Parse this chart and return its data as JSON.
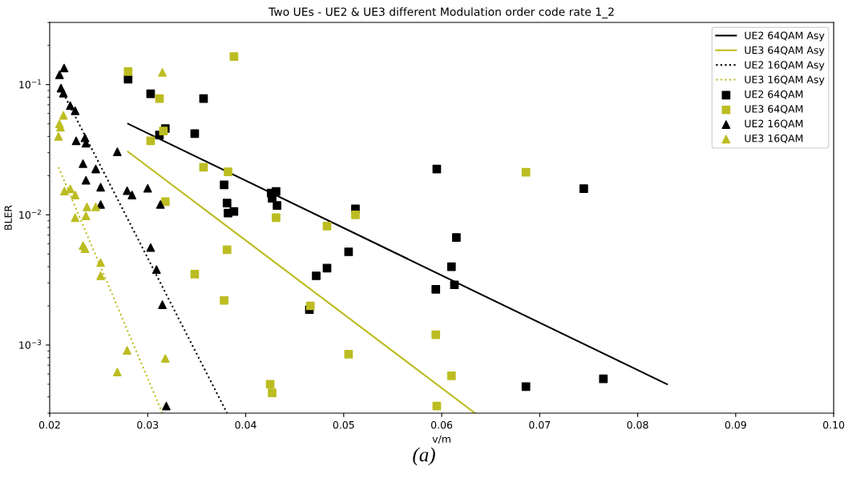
{
  "chart_data": {
    "type": "scatter",
    "title": "Two UEs - UE2 & UE3 different Modulation order code rate 1_2",
    "xlabel": "v/m",
    "ylabel": "BLER",
    "log": "y",
    "xlim": [
      0.02,
      0.1
    ],
    "ylim": [
      0.0003,
      0.3
    ],
    "xticks": [
      0.02,
      0.03,
      0.04,
      0.05,
      0.06,
      0.07,
      0.08,
      0.09,
      {
        "value": 0.1,
        "label": "0.10"
      }
    ],
    "yticks": [
      {
        "value": 0.001,
        "label": "10$^{−3}$"
      },
      {
        "value": 0.01,
        "label": "10$^{−2}$"
      },
      {
        "value": 0.1,
        "label": "10$^{−1}$"
      }
    ],
    "grid": false,
    "legend": "top right",
    "annotations": [
      "(a)"
    ],
    "series": [
      {
        "name": "UE2 64QAM Asy",
        "type": "line",
        "line_style": "solid",
        "marker": "none",
        "color": "#000000",
        "x": [
          0.028,
          0.083
        ],
        "values": [
          0.05,
          0.0005
        ]
      },
      {
        "name": "UE3 64QAM Asy",
        "type": "line",
        "line_style": "solid",
        "marker": "none",
        "color": "#bcbd22",
        "x": [
          0.028,
          0.0634
        ],
        "values": [
          0.0305,
          0.0003
        ]
      },
      {
        "name": "UE2 16QAM Asy",
        "type": "line",
        "line_style": "dotted",
        "marker": "none",
        "color": "#000000",
        "x": [
          0.0216,
          0.0381
        ],
        "values": [
          0.08,
          0.0003
        ]
      },
      {
        "name": "UE3 16QAM Asy",
        "type": "line",
        "line_style": "dotted",
        "marker": "none",
        "color": "#bcbd22",
        "x": [
          0.0209,
          0.0315
        ],
        "values": [
          0.0232,
          0.0003
        ]
      },
      {
        "name": "UE2 64QAM",
        "marker": "square",
        "color": "#000000",
        "x": [
          0.028,
          0.0303,
          0.0357,
          0.0318,
          0.0312,
          0.0348,
          0.0378,
          0.0381,
          0.0382,
          0.0388,
          0.0426,
          0.0431,
          0.0427,
          0.0432,
          0.0595,
          0.0512,
          0.0615,
          0.0505,
          0.061,
          0.0483,
          0.0472,
          0.0613,
          0.0594,
          0.0465,
          0.0686,
          0.0745,
          0.0765
        ],
        "values": [
          0.11,
          0.085,
          0.078,
          0.046,
          0.041,
          0.042,
          0.017,
          0.0123,
          0.0103,
          0.0106,
          0.0147,
          0.0151,
          0.0134,
          0.0118,
          0.0225,
          0.0111,
          0.0067,
          0.0052,
          0.004,
          0.0039,
          0.0034,
          0.0029,
          0.00268,
          0.00187,
          0.00048,
          0.0159,
          0.00055
        ]
      },
      {
        "name": "UE3 64QAM",
        "marker": "square",
        "color": "#bcbd22",
        "x": [
          0.028,
          0.0388,
          0.0312,
          0.0316,
          0.0303,
          0.0357,
          0.0382,
          0.0318,
          0.0431,
          0.0512,
          0.0483,
          0.0686,
          0.0466,
          0.0594,
          0.0505,
          0.061,
          0.0425,
          0.0427,
          0.0595,
          0.0381,
          0.0348,
          0.0378
        ],
        "values": [
          0.126,
          0.164,
          0.078,
          0.044,
          0.037,
          0.0232,
          0.0214,
          0.0126,
          0.0095,
          0.01,
          0.0082,
          0.0212,
          0.002,
          0.0012,
          0.00085,
          0.00058,
          0.0005,
          0.00043,
          0.00034,
          0.0054,
          0.0035,
          0.0022
        ]
      },
      {
        "name": "UE2 16QAM",
        "marker": "triangle",
        "color": "#000000",
        "x": [
          0.02147,
          0.021,
          0.02115,
          0.0214,
          0.0221,
          0.0226,
          0.0227,
          0.0236,
          0.0237,
          0.0269,
          0.0234,
          0.0247,
          0.0237,
          0.0252,
          0.0279,
          0.0284,
          0.03,
          0.0252,
          0.0313,
          0.0303,
          0.0309,
          0.0315,
          0.0319
        ],
        "values": [
          0.134,
          0.119,
          0.094,
          0.086,
          0.069,
          0.063,
          0.037,
          0.039,
          0.0355,
          0.0305,
          0.0247,
          0.0225,
          0.0184,
          0.0163,
          0.0153,
          0.0142,
          0.016,
          0.012,
          0.012,
          0.0056,
          0.0038,
          0.00204,
          0.00034
        ]
      },
      {
        "name": "UE3 16QAM",
        "marker": "triangle",
        "color": "#bcbd22",
        "x": [
          0.0315,
          0.0214,
          0.021,
          0.0211,
          0.0209,
          0.0215,
          0.0221,
          0.0226,
          0.0238,
          0.0247,
          0.0226,
          0.0237,
          0.0234,
          0.0236,
          0.0252,
          0.0252,
          0.0279,
          0.0318,
          0.0269
        ],
        "values": [
          0.124,
          0.058,
          0.05,
          0.047,
          0.04,
          0.0152,
          0.0158,
          0.0142,
          0.0115,
          0.0115,
          0.0095,
          0.0098,
          0.0058,
          0.0055,
          0.0043,
          0.0034,
          0.00091,
          0.00079,
          0.00062
        ]
      }
    ]
  }
}
